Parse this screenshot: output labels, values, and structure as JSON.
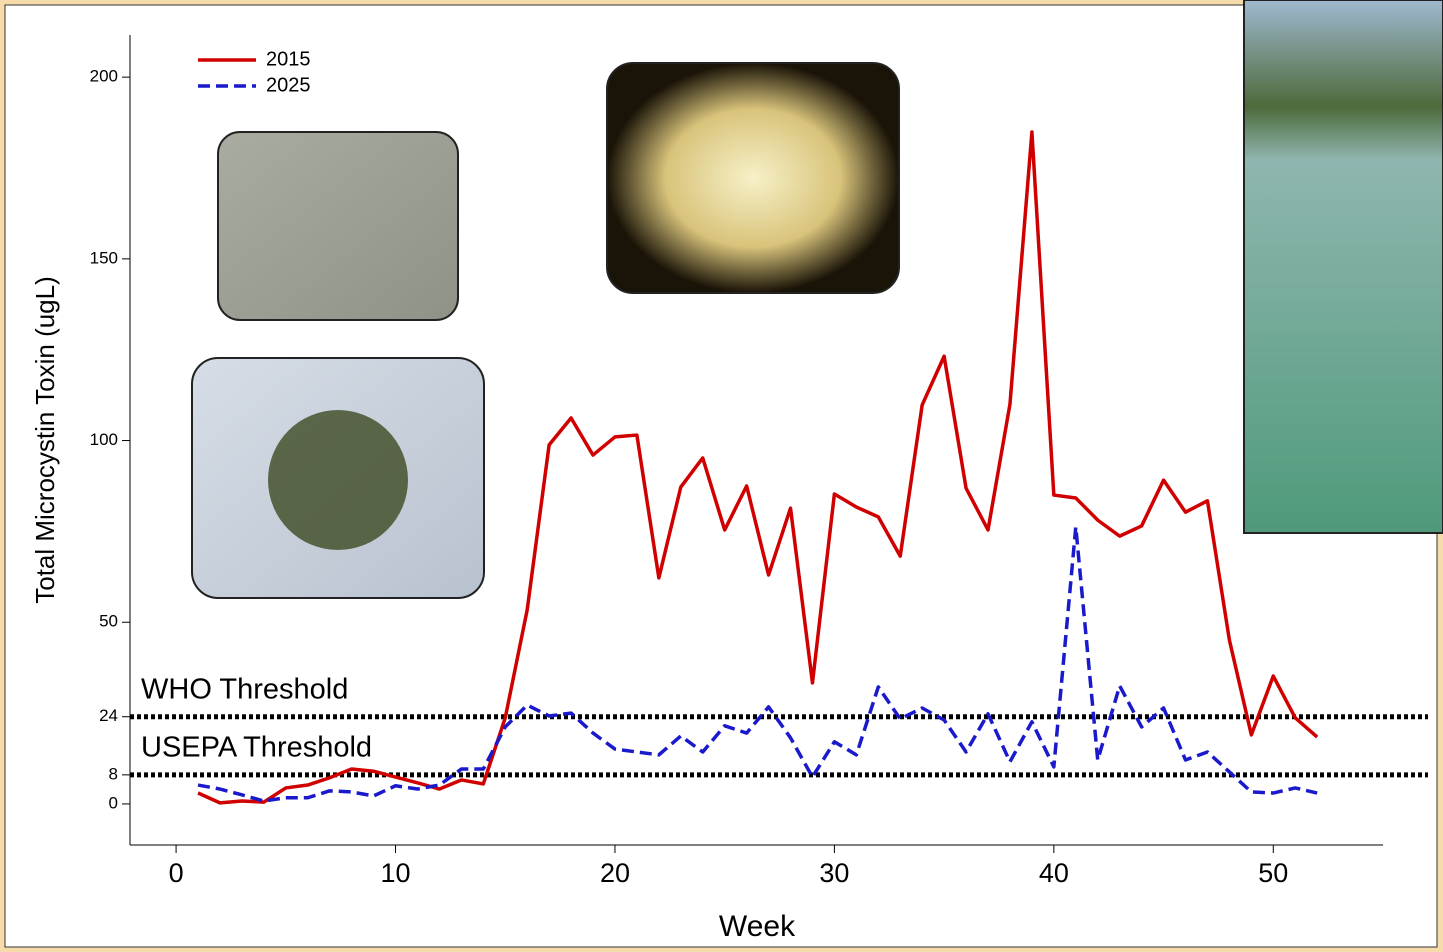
{
  "chart_data": {
    "type": "line",
    "x": [
      1,
      2,
      3,
      4,
      5,
      6,
      7,
      8,
      9,
      10,
      11,
      12,
      13,
      14,
      15,
      16,
      17,
      18,
      19,
      20,
      21,
      22,
      23,
      24,
      25,
      26,
      27,
      28,
      29,
      30,
      31,
      32,
      33,
      34,
      35,
      36,
      37,
      38,
      39,
      40,
      41,
      42,
      43,
      44,
      45,
      46,
      47,
      48,
      49,
      50,
      51,
      52
    ],
    "series": [
      {
        "name": "2015",
        "color": "#d00000",
        "dash": "solid",
        "values": [
          3,
          0.3,
          0.8,
          0.5,
          4.4,
          5.2,
          7.2,
          9.6,
          9,
          7.4,
          5.8,
          4.1,
          6.6,
          5.5,
          23.7,
          53.4,
          98.8,
          106.2,
          96,
          101,
          101.5,
          62.2,
          87.2,
          95.2,
          75.4,
          87.5,
          63,
          81.4,
          33.3,
          85.3,
          81.7,
          79,
          68.2,
          109.8,
          123.2,
          86.9,
          75.4,
          110,
          184.9,
          85,
          84.2,
          78.1,
          73.7,
          76.5,
          89.1,
          80.3,
          83.4,
          45.1,
          19,
          35.2,
          23.7,
          18.4
        ]
      },
      {
        "name": "2025",
        "color": "#1a1acc",
        "dash": "dashed",
        "values": [
          5.2,
          4.1,
          2.5,
          0.8,
          1.7,
          1.7,
          3.6,
          3.3,
          2.2,
          5,
          4.1,
          5.2,
          9.6,
          9.6,
          21.2,
          27.2,
          24.2,
          25,
          19.5,
          15.1,
          14.3,
          13.5,
          18.7,
          14.3,
          21.5,
          19.5,
          26.7,
          18.2,
          7.4,
          17.1,
          13.5,
          32.2,
          23.4,
          26.4,
          23.1,
          14.3,
          24.8,
          11.6,
          22.6,
          10.2,
          76.2,
          12.1,
          32.5,
          21.2,
          26.4,
          12.1,
          14.3,
          8.8,
          3.3,
          3,
          4.4,
          3
        ]
      }
    ],
    "thresholds": [
      {
        "value": 24,
        "label": "WHO Threshold"
      },
      {
        "value": 8,
        "label": "USEPA Threshold"
      }
    ],
    "xlabel": "Week",
    "ylabel": "Total Microcystin Toxin (ugL)",
    "xlim": [
      -2.1,
      55
    ],
    "xticks": [
      0,
      10,
      20,
      30,
      40,
      50
    ],
    "ylim": [
      -11.3,
      211.6
    ],
    "yticks": [
      0,
      8,
      24,
      50,
      100,
      150,
      200
    ],
    "legend": "upper-left"
  }
}
